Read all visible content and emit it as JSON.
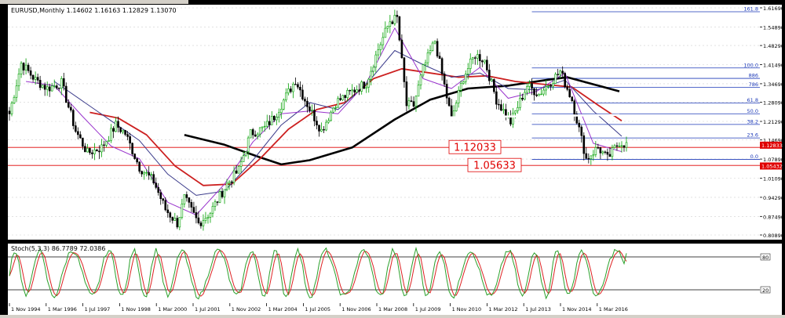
{
  "colors": {
    "background": "#000000",
    "chart_bg": "#ffffff",
    "candle_bull": "#00a000",
    "candle_bear": "#000000",
    "sma_200": "#000000",
    "ema_red": "#cc2020",
    "ma_blue": "#3a3a8a",
    "ma_violet": "#9933cc",
    "fib_lines": "#1d3ab8",
    "support_lines": "#e00000",
    "stoch_main": "#2aa02a",
    "stoch_signal": "#dd2222",
    "grid": "#cfcfcf"
  },
  "chart_data": [
    {
      "type": "candlestick",
      "title": "EURUSD,Monthly  1.14602 1.16163 1.12829 1.13070",
      "symbol": "EURUSD",
      "timeframe": "Monthly",
      "ohlc_header": {
        "open": 1.14602,
        "high": 1.16163,
        "low": 1.12829,
        "close": 1.1307
      },
      "ylim": [
        0.8089,
        1.6169
      ],
      "y_ticks": [
        "1.61690",
        "1.54890",
        "1.48290",
        "1.41490",
        "1.34690",
        "1.28090",
        "1.21290",
        "1.14690",
        "1.07890",
        "1.01090",
        "0.94290",
        "0.87490",
        "0.80890"
      ],
      "x_ticks": [
        "1 Nov 1994",
        "1 Mar 1996",
        "1 Jul 1997",
        "1 Nov 1998",
        "1 Mar 2000",
        "1 Jul 2001",
        "1 Nov 2002",
        "1 Mar 2004",
        "1 Jul 2005",
        "1 Nov 2006",
        "1 Mar 2008",
        "1 Jul 2009",
        "1 Nov 2010",
        "1 Mar 2012",
        "1 Jul 2013",
        "1 Nov 2014",
        "1 Mar 2016"
      ],
      "x_range": [
        "1994-11",
        "2016-08"
      ],
      "price_path": [
        [
          "1994-11",
          1.24
        ],
        [
          "1995-04",
          1.42
        ],
        [
          "1995-10",
          1.36
        ],
        [
          "1996-03",
          1.33
        ],
        [
          "1996-09",
          1.35
        ],
        [
          "1997-03",
          1.18
        ],
        [
          "1997-08",
          1.1
        ],
        [
          "1998-02",
          1.12
        ],
        [
          "1998-08",
          1.2
        ],
        [
          "1998-12",
          1.17
        ],
        [
          "1999-06",
          1.05
        ],
        [
          "1999-12",
          1.0
        ],
        [
          "2000-05",
          0.9
        ],
        [
          "2000-10",
          0.85
        ],
        [
          "2001-01",
          0.94
        ],
        [
          "2001-07",
          0.85
        ],
        [
          "2001-12",
          0.89
        ],
        [
          "2002-07",
          0.99
        ],
        [
          "2002-12",
          1.04
        ],
        [
          "2003-05",
          1.17
        ],
        [
          "2003-11",
          1.19
        ],
        [
          "2004-03",
          1.23
        ],
        [
          "2004-12",
          1.36
        ],
        [
          "2005-04",
          1.29
        ],
        [
          "2005-11",
          1.18
        ],
        [
          "2006-05",
          1.28
        ],
        [
          "2006-12",
          1.32
        ],
        [
          "2007-06",
          1.35
        ],
        [
          "2007-11",
          1.47
        ],
        [
          "2008-04",
          1.57
        ],
        [
          "2008-07",
          1.58
        ],
        [
          "2008-11",
          1.27
        ],
        [
          "2009-02",
          1.27
        ],
        [
          "2009-06",
          1.4
        ],
        [
          "2009-11",
          1.5
        ],
        [
          "2010-06",
          1.22
        ],
        [
          "2010-11",
          1.37
        ],
        [
          "2011-04",
          1.45
        ],
        [
          "2011-08",
          1.43
        ],
        [
          "2012-01",
          1.29
        ],
        [
          "2012-07",
          1.21
        ],
        [
          "2013-02",
          1.34
        ],
        [
          "2013-07",
          1.31
        ],
        [
          "2014-04",
          1.39
        ],
        [
          "2014-09",
          1.29
        ],
        [
          "2015-03",
          1.08
        ],
        [
          "2015-08",
          1.12
        ],
        [
          "2015-12",
          1.08
        ],
        [
          "2016-05",
          1.14
        ],
        [
          "2016-08",
          1.13
        ]
      ],
      "fibonacci": {
        "levels": [
          {
            "label": "161.8",
            "price": 1.603
          },
          {
            "label": "100.0",
            "price": 1.403
          },
          {
            "label": "886",
            "price": 1.366
          },
          {
            "label": "786",
            "price": 1.334
          },
          {
            "label": "61.8",
            "price": 1.278
          },
          {
            "label": "50.0",
            "price": 1.24
          },
          {
            "label": "38.2",
            "price": 1.202
          },
          {
            "label": "23.6",
            "price": 1.154
          },
          {
            "label": "0.0",
            "price": 1.078
          }
        ],
        "from_date": "2013-04"
      },
      "horizontal_lines": [
        {
          "label": "1.12033",
          "price": 1.12033
        },
        {
          "label": "1.05633",
          "price": 1.05633
        }
      ],
      "axis_price_tags": [
        {
          "label": "1.12833",
          "price": 1.1283
        },
        {
          "label": "1.05432",
          "price": 1.0543
        }
      ],
      "white_line": {
        "from": [
          "2009-06",
          1.226
        ],
        "to": [
          "2016-05",
          1.236
        ]
      },
      "moving_averages": [
        {
          "color_key": "sma_200",
          "points": [
            [
              "2001-01",
              1.165
            ],
            [
              "2002-06",
              1.13
            ],
            [
              "2003-09",
              1.085
            ],
            [
              "2004-06",
              1.06
            ],
            [
              "2005-06",
              1.075
            ],
            [
              "2006-12",
              1.12
            ],
            [
              "2008-06",
              1.22
            ],
            [
              "2009-09",
              1.29
            ],
            [
              "2011-01",
              1.33
            ],
            [
              "2012-06",
              1.34
            ],
            [
              "2013-10",
              1.36
            ],
            [
              "2014-07",
              1.37
            ],
            [
              "2015-06",
              1.345
            ],
            [
              "2016-05",
              1.32
            ]
          ]
        },
        {
          "color_key": "ema_red",
          "points": [
            [
              "1997-09",
              1.245
            ],
            [
              "1998-09",
              1.225
            ],
            [
              "1999-09",
              1.165
            ],
            [
              "2000-09",
              1.055
            ],
            [
              "2001-09",
              0.985
            ],
            [
              "2002-09",
              0.99
            ],
            [
              "2003-09",
              1.08
            ],
            [
              "2004-09",
              1.185
            ],
            [
              "2005-09",
              1.255
            ],
            [
              "2006-09",
              1.28
            ],
            [
              "2007-09",
              1.365
            ],
            [
              "2008-09",
              1.4
            ],
            [
              "2009-09",
              1.385
            ],
            [
              "2010-09",
              1.37
            ],
            [
              "2011-09",
              1.375
            ],
            [
              "2012-09",
              1.355
            ],
            [
              "2013-09",
              1.345
            ],
            [
              "2014-09",
              1.335
            ],
            [
              "2015-09",
              1.265
            ],
            [
              "2016-06",
              1.215
            ]
          ]
        },
        {
          "color_key": "ma_blue",
          "points": [
            [
              "1996-06",
              1.355
            ],
            [
              "1997-06",
              1.285
            ],
            [
              "1998-06",
              1.215
            ],
            [
              "1999-06",
              1.145
            ],
            [
              "2000-06",
              1.025
            ],
            [
              "2001-06",
              0.95
            ],
            [
              "2002-06",
              0.965
            ],
            [
              "2003-06",
              1.075
            ],
            [
              "2004-06",
              1.2
            ],
            [
              "2005-06",
              1.28
            ],
            [
              "2006-06",
              1.255
            ],
            [
              "2007-06",
              1.345
            ],
            [
              "2008-06",
              1.465
            ],
            [
              "2009-06",
              1.415
            ],
            [
              "2010-06",
              1.37
            ],
            [
              "2011-06",
              1.385
            ],
            [
              "2012-06",
              1.33
            ],
            [
              "2013-06",
              1.325
            ],
            [
              "2014-06",
              1.36
            ],
            [
              "2015-06",
              1.25
            ],
            [
              "2016-06",
              1.16
            ]
          ]
        },
        {
          "color_key": "ma_violet",
          "points": [
            [
              "1995-06",
              1.355
            ],
            [
              "1996-06",
              1.34
            ],
            [
              "1997-06",
              1.23
            ],
            [
              "1998-06",
              1.125
            ],
            [
              "1999-06",
              1.08
            ],
            [
              "2000-06",
              0.925
            ],
            [
              "2001-06",
              0.88
            ],
            [
              "2002-06",
              0.99
            ],
            [
              "2003-06",
              1.14
            ],
            [
              "2004-06",
              1.24
            ],
            [
              "2005-06",
              1.25
            ],
            [
              "2006-06",
              1.24
            ],
            [
              "2007-06",
              1.35
            ],
            [
              "2008-06",
              1.545
            ],
            [
              "2009-06",
              1.365
            ],
            [
              "2010-06",
              1.33
            ],
            [
              "2011-06",
              1.405
            ],
            [
              "2012-06",
              1.295
            ],
            [
              "2013-06",
              1.32
            ],
            [
              "2014-06",
              1.385
            ],
            [
              "2015-06",
              1.135
            ],
            [
              "2016-06",
              1.105
            ]
          ]
        }
      ]
    },
    {
      "type": "line",
      "title": "Stoch(5,3,3) 86.7789 72.0386",
      "ylim": [
        0,
        100
      ],
      "y_ticks": [
        "80",
        "20"
      ],
      "levels": [
        80,
        20
      ],
      "series": [
        {
          "key": "stoch_main",
          "last": 86.7789
        },
        {
          "key": "stoch_signal",
          "last": 72.0386
        }
      ]
    }
  ]
}
